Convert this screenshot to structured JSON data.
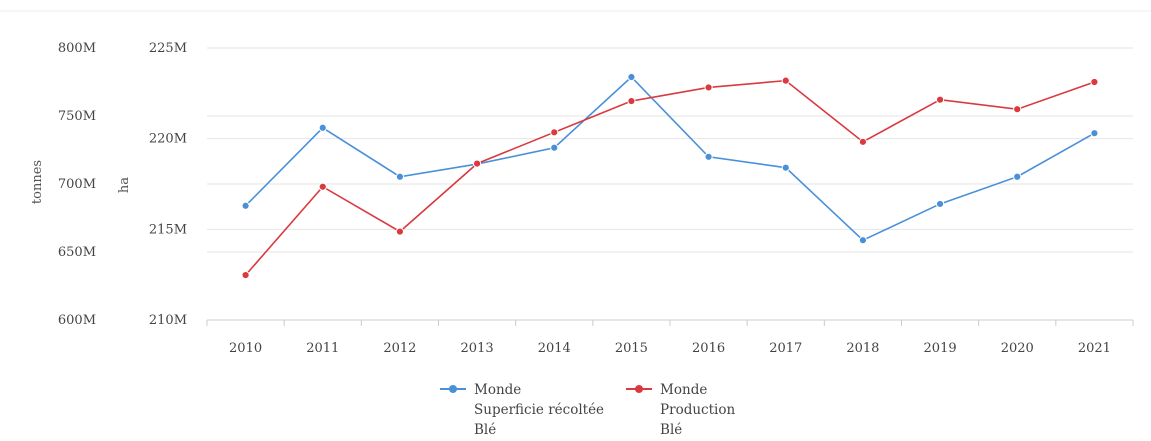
{
  "chart_data": {
    "type": "line",
    "x": [
      "2010",
      "2011",
      "2012",
      "2013",
      "2014",
      "2015",
      "2016",
      "2017",
      "2018",
      "2019",
      "2020",
      "2021"
    ],
    "left_axis": {
      "title": "tonnes",
      "ticks": [
        "800M",
        "750M",
        "700M",
        "650M",
        "600M"
      ],
      "range": [
        600000000,
        800000000
      ]
    },
    "right_axis": {
      "title": "ha",
      "ticks": [
        "225M",
        "220M",
        "215M",
        "210M"
      ],
      "range": [
        210000000,
        225000000
      ]
    },
    "series": [
      {
        "name": "Monde Superficie récoltée Blé",
        "legend_lines": [
          "Monde",
          "Superficie récoltée",
          "Blé"
        ],
        "color": "#4a90d9",
        "axis": "ha",
        "values": [
          216.3,
          220.6,
          217.9,
          218.6,
          219.5,
          223.4,
          219.0,
          218.4,
          214.4,
          216.4,
          217.9,
          220.3
        ]
      },
      {
        "name": "Monde Production Blé",
        "legend_lines": [
          "Monde",
          "Production",
          "Blé"
        ],
        "color": "#d9393f",
        "axis": "tonnes",
        "values": [
          633,
          698,
          665,
          715,
          738,
          761,
          771,
          776,
          731,
          762,
          755,
          775
        ]
      }
    ],
    "grid": true,
    "legend_position": "bottom-center"
  }
}
